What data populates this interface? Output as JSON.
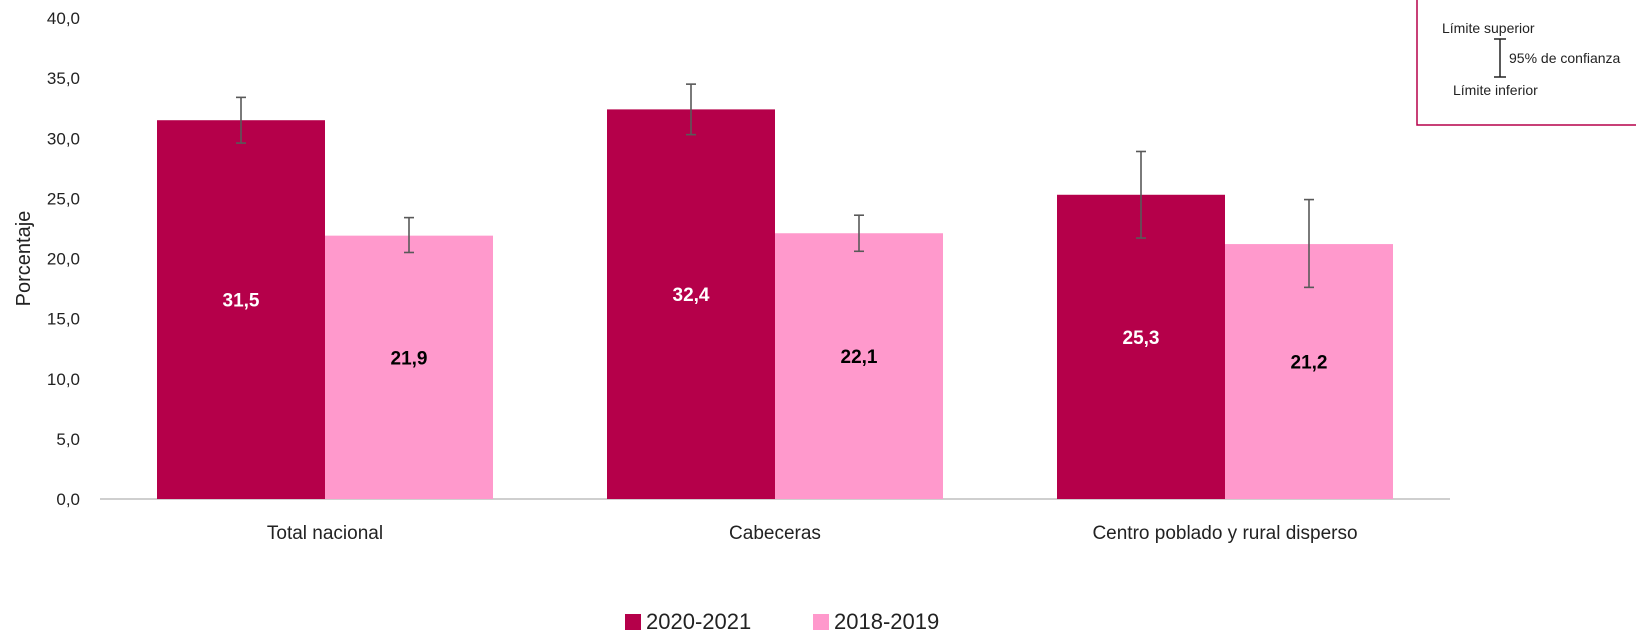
{
  "chart_data": {
    "type": "bar",
    "ylabel": "Porcentaje",
    "ylim": [
      0,
      40
    ],
    "ytick_step": 5,
    "yticks": [
      "0,0",
      "5,0",
      "10,0",
      "15,0",
      "20,0",
      "25,0",
      "30,0",
      "35,0",
      "40,0"
    ],
    "categories": [
      "Total nacional",
      "Cabeceras",
      "Centro poblado y rural disperso"
    ],
    "series": [
      {
        "name": "2020-2021",
        "color": "#b5004a",
        "label_color": "#ffffff",
        "values": [
          31.5,
          32.4,
          25.3
        ],
        "labels": [
          "31,5",
          "32,4",
          "25,3"
        ],
        "ci_low": [
          29.6,
          30.3,
          21.7
        ],
        "ci_high": [
          33.4,
          34.5,
          28.9
        ]
      },
      {
        "name": "2018-2019",
        "color": "#ff99cc",
        "label_color": "#000000",
        "values": [
          21.9,
          22.1,
          21.2
        ],
        "labels": [
          "21,9",
          "22,1",
          "21,2"
        ],
        "ci_low": [
          20.5,
          20.6,
          17.6
        ],
        "ci_high": [
          23.4,
          23.6,
          24.9
        ]
      }
    ],
    "legend_position": "bottom",
    "grid": false,
    "error_bar_key": {
      "upper": "Límite superior",
      "lower": "Límite inferior",
      "confidence": "95% de confianza",
      "border_color": "#b5004a"
    }
  }
}
